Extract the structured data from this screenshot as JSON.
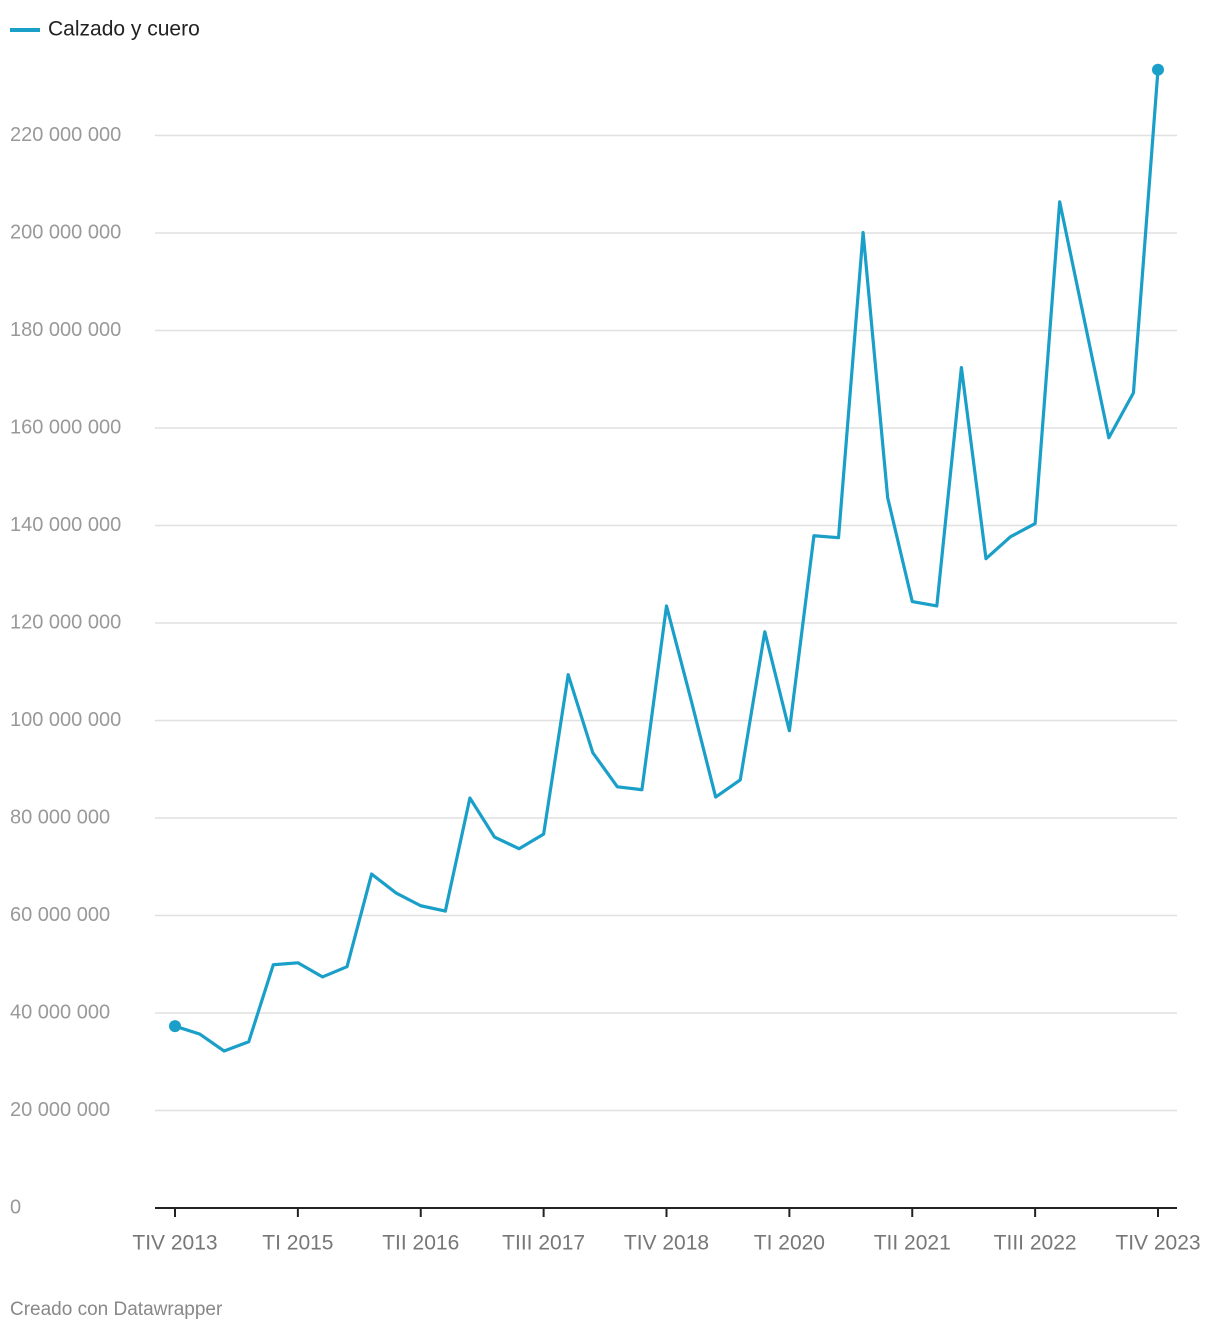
{
  "chart_data": {
    "type": "line",
    "categories": [
      "TIV 2013",
      null,
      null,
      null,
      null,
      "TI 2015",
      null,
      null,
      null,
      null,
      "TII 2016",
      null,
      null,
      null,
      null,
      "TIII 2017",
      null,
      null,
      null,
      null,
      "TIV 2018",
      null,
      null,
      null,
      null,
      "TI 2020",
      null,
      null,
      null,
      null,
      "TII 2021",
      null,
      null,
      null,
      null,
      "TIII 2022",
      null,
      null,
      null,
      null,
      "TIV 2023"
    ],
    "series": [
      {
        "name": "Calzado y cuero",
        "color": "#1a9fc9",
        "values": [
          37300000,
          35700000,
          32200000,
          34100000,
          49900000,
          50300000,
          47400000,
          49500000,
          68500000,
          64600000,
          62000000,
          60900000,
          84100000,
          76100000,
          73700000,
          76700000,
          109400000,
          93400000,
          86400000,
          85800000,
          123500000,
          104200000,
          84300000,
          87800000,
          118200000,
          97900000,
          137900000,
          137500000,
          200100000,
          145700000,
          124400000,
          123500000,
          172400000,
          133200000,
          137700000,
          140400000,
          206400000,
          182200000,
          158000000,
          167200000,
          233500000
        ]
      }
    ],
    "ylim": [
      0,
      240000000
    ],
    "yticks": [
      0,
      {
        "value": 20000000,
        "label": "20 000 000"
      },
      {
        "value": 40000000,
        "label": "40 000 000"
      },
      {
        "value": 60000000,
        "label": "60 000 000"
      },
      {
        "value": 80000000,
        "label": "80 000 000"
      },
      {
        "value": 100000000,
        "label": "100 000 000"
      },
      {
        "value": 120000000,
        "label": "120 000 000"
      },
      {
        "value": 140000000,
        "label": "140 000 000"
      },
      {
        "value": 160000000,
        "label": "160 000 000"
      },
      {
        "value": 180000000,
        "label": "180 000 000"
      },
      {
        "value": 200000000,
        "label": "200 000 000"
      },
      {
        "value": 220000000,
        "label": "220 000 000"
      }
    ],
    "grid": true,
    "legend": "top-left",
    "credit": "Creado con Datawrapper"
  }
}
